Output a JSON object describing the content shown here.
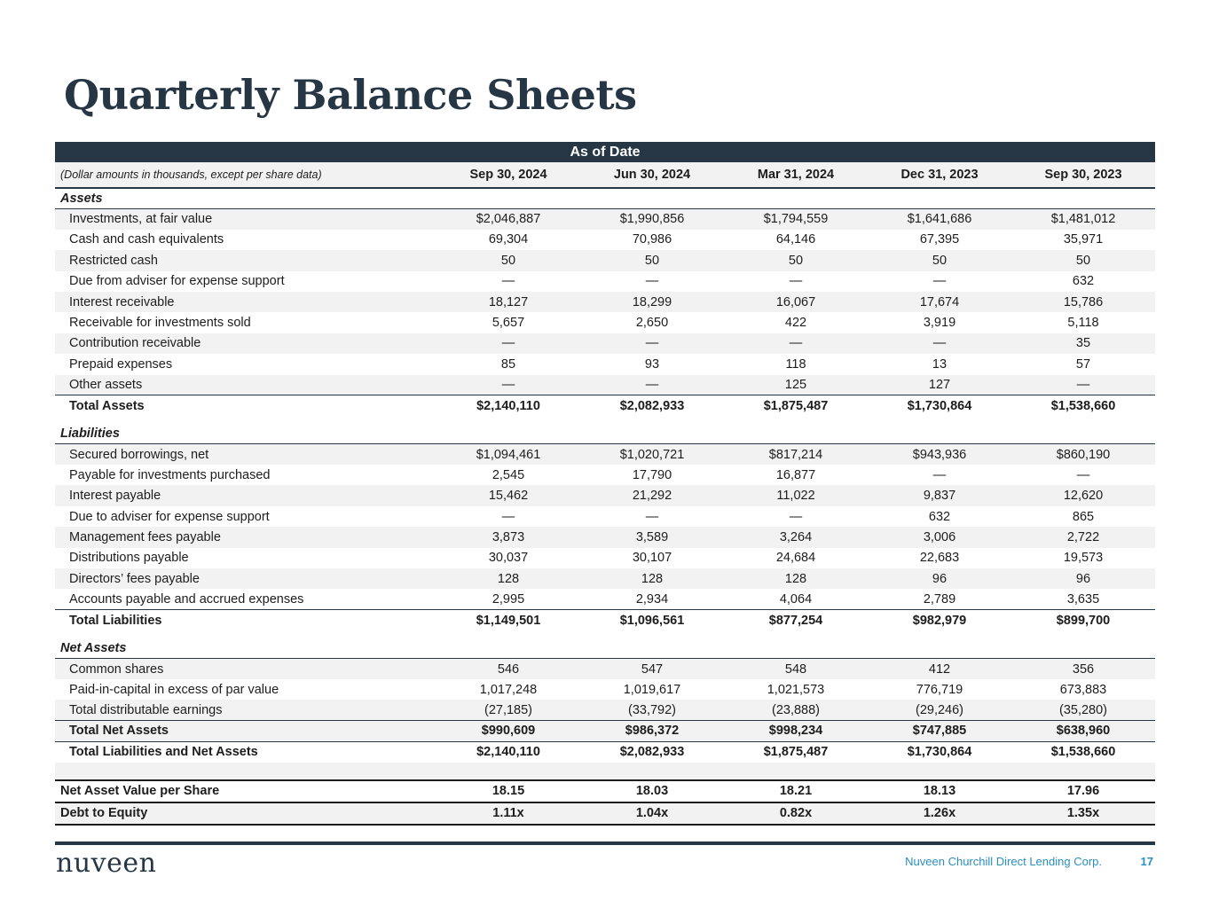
{
  "title": "Quarterly Balance Sheets",
  "banner": "As of Date",
  "note": "(Dollar amounts in thousands, except per share data)",
  "columns": [
    "Sep 30, 2024",
    "Jun 30, 2024",
    "Mar 31, 2024",
    "Dec 31, 2023",
    "Sep 30, 2023"
  ],
  "sections": [
    {
      "label": "Assets",
      "rows": [
        {
          "label": "Investments, at fair value",
          "values": [
            "$2,046,887",
            "$1,990,856",
            "$1,794,559",
            "$1,641,686",
            "$1,481,012"
          ]
        },
        {
          "label": "Cash and cash equivalents",
          "values": [
            "69,304",
            "70,986",
            "64,146",
            "67,395",
            "35,971"
          ]
        },
        {
          "label": "Restricted cash",
          "values": [
            "50",
            "50",
            "50",
            "50",
            "50"
          ]
        },
        {
          "label": "Due from adviser for expense support",
          "values": [
            "—",
            "—",
            "—",
            "—",
            "632"
          ]
        },
        {
          "label": "Interest receivable",
          "values": [
            "18,127",
            "18,299",
            "16,067",
            "17,674",
            "15,786"
          ]
        },
        {
          "label": "Receivable for investments sold",
          "values": [
            "5,657",
            "2,650",
            "422",
            "3,919",
            "5,118"
          ]
        },
        {
          "label": "Contribution receivable",
          "values": [
            "—",
            "—",
            "—",
            "—",
            "35"
          ]
        },
        {
          "label": "Prepaid expenses",
          "values": [
            "85",
            "93",
            "118",
            "13",
            "57"
          ]
        },
        {
          "label": "Other assets",
          "values": [
            "—",
            "—",
            "125",
            "127",
            "—"
          ]
        }
      ],
      "totals": [
        {
          "label": "Total Assets",
          "values": [
            "$2,140,110",
            "$2,082,933",
            "$1,875,487",
            "$1,730,864",
            "$1,538,660"
          ]
        }
      ]
    },
    {
      "label": "Liabilities",
      "rows": [
        {
          "label": "Secured borrowings, net",
          "values": [
            "$1,094,461",
            "$1,020,721",
            "$817,214",
            "$943,936",
            "$860,190"
          ]
        },
        {
          "label": "Payable for investments purchased",
          "values": [
            "2,545",
            "17,790",
            "16,877",
            "—",
            "—"
          ]
        },
        {
          "label": "Interest payable",
          "values": [
            "15,462",
            "21,292",
            "11,022",
            "9,837",
            "12,620"
          ]
        },
        {
          "label": "Due to adviser for expense support",
          "values": [
            "—",
            "—",
            "—",
            "632",
            "865"
          ]
        },
        {
          "label": "Management fees payable",
          "values": [
            "3,873",
            "3,589",
            "3,264",
            "3,006",
            "2,722"
          ]
        },
        {
          "label": "Distributions payable",
          "values": [
            "30,037",
            "30,107",
            "24,684",
            "22,683",
            "19,573"
          ]
        },
        {
          "label": "Directors’ fees payable",
          "values": [
            "128",
            "128",
            "128",
            "96",
            "96"
          ]
        },
        {
          "label": "Accounts payable and accrued expenses",
          "values": [
            "2,995",
            "2,934",
            "4,064",
            "2,789",
            "3,635"
          ]
        }
      ],
      "totals": [
        {
          "label": "Total Liabilities",
          "values": [
            "$1,149,501",
            "$1,096,561",
            "$877,254",
            "$982,979",
            "$899,700"
          ]
        }
      ]
    },
    {
      "label": "Net Assets",
      "rows": [
        {
          "label": "Common shares",
          "values": [
            "546",
            "547",
            "548",
            "412",
            "356"
          ]
        },
        {
          "label": "Paid-in-capital in excess of par value",
          "values": [
            "1,017,248",
            "1,019,617",
            "1,021,573",
            "776,719",
            "673,883"
          ]
        },
        {
          "label": "Total distributable earnings",
          "values": [
            "(27,185)",
            "(33,792)",
            "(23,888)",
            "(29,246)",
            "(35,280)"
          ]
        }
      ],
      "totals": [
        {
          "label": "Total Net Assets",
          "values": [
            "$990,609",
            "$986,372",
            "$998,234",
            "$747,885",
            "$638,960"
          ]
        },
        {
          "label": "Total Liabilities and Net Assets",
          "values": [
            "$2,140,110",
            "$2,082,933",
            "$1,875,487",
            "$1,730,864",
            "$1,538,660"
          ]
        }
      ]
    }
  ],
  "metrics": [
    {
      "label": "Net Asset Value per Share",
      "values": [
        "18.15",
        "18.03",
        "18.21",
        "18.13",
        "17.96"
      ]
    },
    {
      "label": "Debt to Equity",
      "values": [
        "1.11x",
        "1.04x",
        "0.82x",
        "1.26x",
        "1.35x"
      ]
    }
  ],
  "footer": {
    "logo": "nuveen",
    "company": "Nuveen Churchill Direct Lending Corp.",
    "page": "17"
  }
}
